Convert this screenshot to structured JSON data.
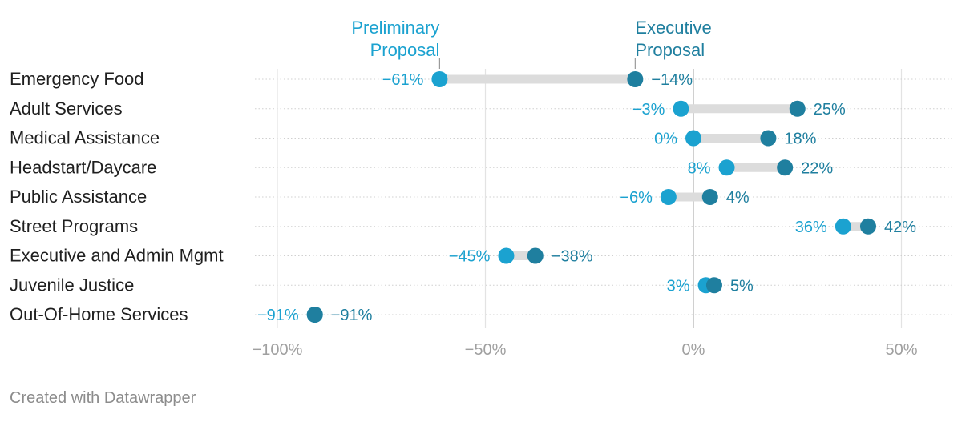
{
  "chart_data": {
    "type": "dot",
    "title": "",
    "xlabel": "",
    "ylabel": "",
    "xlim": [
      -100,
      62
    ],
    "x_ticks": [
      -100,
      -50,
      0,
      50
    ],
    "x_tick_labels": [
      "−100%",
      "−50%",
      "0%",
      "50%"
    ],
    "categories": [
      "Emergency Food",
      "Adult Services",
      "Medical Assistance",
      "Headstart/Daycare",
      "Public Assistance",
      "Street Programs",
      "Executive and Admin Mgmt",
      "Juvenile Justice",
      "Out-Of-Home Services"
    ],
    "series": [
      {
        "name": "Preliminary Proposal",
        "legend_label": [
          "Preliminary",
          "Proposal"
        ],
        "color": "#1ba2d0",
        "values": [
          -61,
          -3,
          0,
          8,
          -6,
          36,
          -45,
          3,
          -91
        ],
        "labels": [
          "−61%",
          "−3%",
          "0%",
          "8%",
          "−6%",
          "36%",
          "−45%",
          "3%",
          "−91%"
        ]
      },
      {
        "name": "Executive Proposal",
        "legend_label": [
          "Executive",
          "Proposal"
        ],
        "color": "#1f7f9f",
        "values": [
          -14,
          25,
          18,
          22,
          4,
          42,
          -38,
          5,
          -91
        ],
        "labels": [
          "−14%",
          "25%",
          "18%",
          "22%",
          "4%",
          "42%",
          "−38%",
          "5%",
          "−91%"
        ]
      }
    ]
  },
  "footer": "Created with Datawrapper"
}
